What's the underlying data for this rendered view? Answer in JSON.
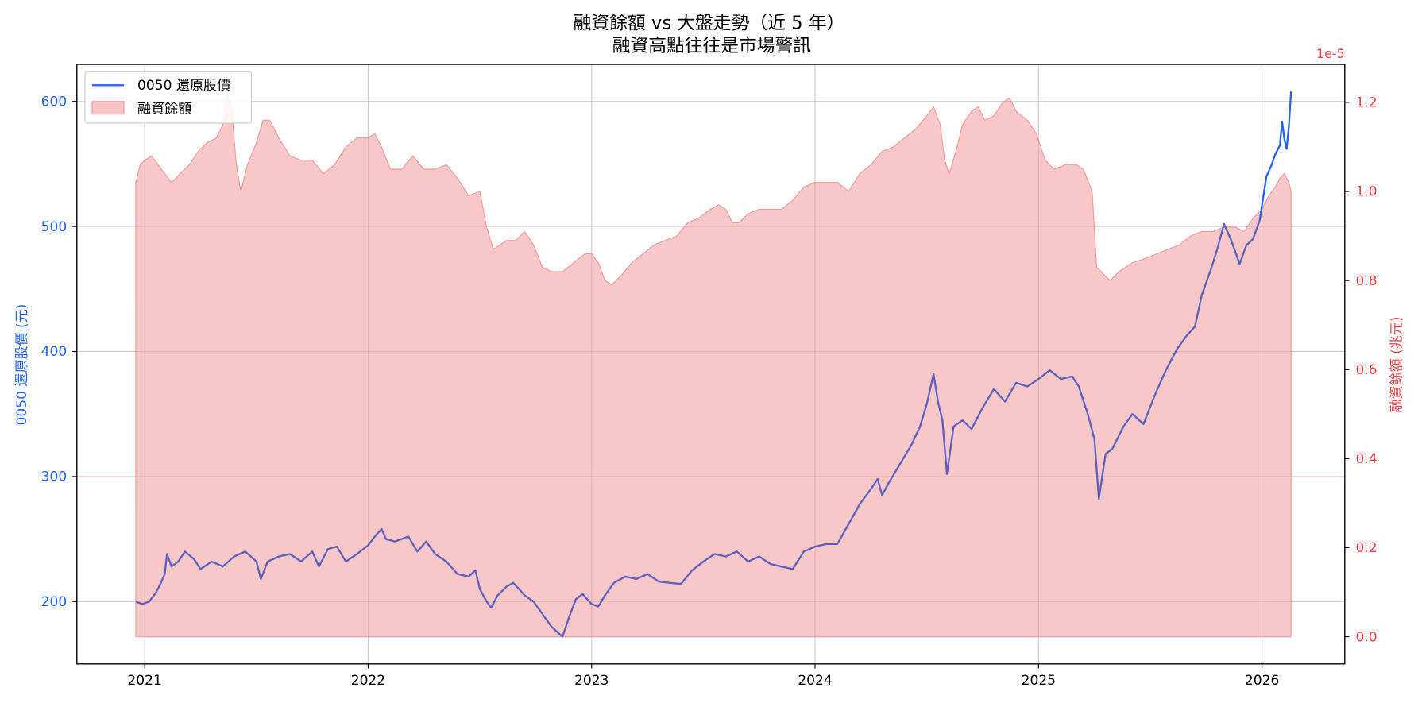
{
  "chart_data": {
    "type": "line",
    "title": "融資餘額 vs 大盤走勢（近 5 年）",
    "subtitle": "融資高點往往是市場警訊",
    "xlabel": "",
    "ylabel_left": "0050 還原股價 (元)",
    "ylabel_right": "融資餘額 (兆元)",
    "right_axis_offset_text": "1e-5",
    "x_ticks": [
      "2021",
      "2022",
      "2023",
      "2024",
      "2025",
      "2026"
    ],
    "y_left_ticks": [
      "200",
      "300",
      "400",
      "500",
      "600"
    ],
    "y_right_ticks": [
      "0.0",
      "0.2",
      "0.4",
      "0.6",
      "0.8",
      "1.0",
      "1.2"
    ],
    "ylim_left": [
      150,
      630
    ],
    "ylim_right": [
      -0.07,
      1.29
    ],
    "xlim": [
      2020.7,
      2026.37
    ],
    "grid": true,
    "legend_position": "upper left",
    "legend": [
      "0050 還原股價",
      "融資餘額"
    ],
    "colors": {
      "price_line": "#2563eb",
      "price_line_under_fill": "#5b5fc0",
      "margin_fill": "#f8c4c4",
      "margin_edge": "#f28b8b",
      "left_axis": "#2563eb",
      "right_axis": "#e64545"
    },
    "series": [
      {
        "name": "0050 還原股價",
        "type": "line",
        "axis": "left",
        "points": [
          [
            2020.96,
            200
          ],
          [
            2020.99,
            198
          ],
          [
            2021.02,
            200
          ],
          [
            2021.05,
            207
          ],
          [
            2021.07,
            214
          ],
          [
            2021.09,
            222
          ],
          [
            2021.1,
            238
          ],
          [
            2021.12,
            228
          ],
          [
            2021.15,
            232
          ],
          [
            2021.18,
            240
          ],
          [
            2021.22,
            234
          ],
          [
            2021.25,
            226
          ],
          [
            2021.3,
            232
          ],
          [
            2021.35,
            228
          ],
          [
            2021.4,
            236
          ],
          [
            2021.45,
            240
          ],
          [
            2021.5,
            232
          ],
          [
            2021.52,
            218
          ],
          [
            2021.55,
            232
          ],
          [
            2021.6,
            236
          ],
          [
            2021.65,
            238
          ],
          [
            2021.7,
            232
          ],
          [
            2021.75,
            240
          ],
          [
            2021.78,
            228
          ],
          [
            2021.82,
            242
          ],
          [
            2021.86,
            244
          ],
          [
            2021.9,
            232
          ],
          [
            2021.95,
            238
          ],
          [
            2022.0,
            245
          ],
          [
            2022.03,
            252
          ],
          [
            2022.06,
            258
          ],
          [
            2022.08,
            250
          ],
          [
            2022.12,
            248
          ],
          [
            2022.18,
            252
          ],
          [
            2022.22,
            240
          ],
          [
            2022.26,
            248
          ],
          [
            2022.3,
            238
          ],
          [
            2022.35,
            232
          ],
          [
            2022.4,
            222
          ],
          [
            2022.45,
            220
          ],
          [
            2022.48,
            225
          ],
          [
            2022.5,
            210
          ],
          [
            2022.53,
            200
          ],
          [
            2022.55,
            195
          ],
          [
            2022.58,
            205
          ],
          [
            2022.62,
            212
          ],
          [
            2022.65,
            215
          ],
          [
            2022.7,
            205
          ],
          [
            2022.74,
            200
          ],
          [
            2022.78,
            190
          ],
          [
            2022.82,
            180
          ],
          [
            2022.85,
            175
          ],
          [
            2022.87,
            172
          ],
          [
            2022.9,
            188
          ],
          [
            2022.93,
            202
          ],
          [
            2022.96,
            206
          ],
          [
            2023.0,
            198
          ],
          [
            2023.03,
            196
          ],
          [
            2023.06,
            205
          ],
          [
            2023.1,
            215
          ],
          [
            2023.15,
            220
          ],
          [
            2023.2,
            218
          ],
          [
            2023.25,
            222
          ],
          [
            2023.3,
            216
          ],
          [
            2023.35,
            215
          ],
          [
            2023.4,
            214
          ],
          [
            2023.45,
            225
          ],
          [
            2023.5,
            232
          ],
          [
            2023.55,
            238
          ],
          [
            2023.6,
            236
          ],
          [
            2023.65,
            240
          ],
          [
            2023.7,
            232
          ],
          [
            2023.75,
            236
          ],
          [
            2023.8,
            230
          ],
          [
            2023.85,
            228
          ],
          [
            2023.9,
            226
          ],
          [
            2023.95,
            240
          ],
          [
            2024.0,
            244
          ],
          [
            2024.05,
            246
          ],
          [
            2024.1,
            246
          ],
          [
            2024.15,
            262
          ],
          [
            2024.2,
            278
          ],
          [
            2024.25,
            290
          ],
          [
            2024.28,
            298
          ],
          [
            2024.3,
            285
          ],
          [
            2024.33,
            295
          ],
          [
            2024.38,
            310
          ],
          [
            2024.43,
            325
          ],
          [
            2024.47,
            340
          ],
          [
            2024.5,
            358
          ],
          [
            2024.53,
            382
          ],
          [
            2024.55,
            360
          ],
          [
            2024.57,
            345
          ],
          [
            2024.59,
            302
          ],
          [
            2024.62,
            340
          ],
          [
            2024.66,
            345
          ],
          [
            2024.7,
            338
          ],
          [
            2024.75,
            355
          ],
          [
            2024.8,
            370
          ],
          [
            2024.85,
            360
          ],
          [
            2024.9,
            375
          ],
          [
            2024.95,
            372
          ],
          [
            2025.0,
            378
          ],
          [
            2025.05,
            385
          ],
          [
            2025.1,
            378
          ],
          [
            2025.15,
            380
          ],
          [
            2025.18,
            372
          ],
          [
            2025.22,
            350
          ],
          [
            2025.25,
            330
          ],
          [
            2025.27,
            282
          ],
          [
            2025.3,
            318
          ],
          [
            2025.33,
            322
          ],
          [
            2025.38,
            340
          ],
          [
            2025.42,
            350
          ],
          [
            2025.47,
            342
          ],
          [
            2025.52,
            365
          ],
          [
            2025.57,
            385
          ],
          [
            2025.62,
            402
          ],
          [
            2025.66,
            412
          ],
          [
            2025.7,
            420
          ],
          [
            2025.73,
            445
          ],
          [
            2025.77,
            465
          ],
          [
            2025.8,
            482
          ],
          [
            2025.83,
            502
          ],
          [
            2025.86,
            490
          ],
          [
            2025.9,
            470
          ],
          [
            2025.93,
            485
          ],
          [
            2025.96,
            490
          ],
          [
            2025.99,
            505
          ],
          [
            2026.02,
            540
          ],
          [
            2026.04,
            548
          ],
          [
            2026.06,
            558
          ],
          [
            2026.08,
            565
          ],
          [
            2026.09,
            584
          ],
          [
            2026.1,
            570
          ],
          [
            2026.11,
            562
          ],
          [
            2026.12,
            580
          ],
          [
            2026.13,
            608
          ]
        ]
      },
      {
        "name": "融資餘額",
        "type": "area",
        "axis": "right",
        "unit": "1e-5 兆元",
        "points": [
          [
            2020.96,
            1.02
          ],
          [
            2020.98,
            1.06
          ],
          [
            2021.0,
            1.07
          ],
          [
            2021.03,
            1.08
          ],
          [
            2021.06,
            1.06
          ],
          [
            2021.09,
            1.04
          ],
          [
            2021.12,
            1.02
          ],
          [
            2021.16,
            1.04
          ],
          [
            2021.2,
            1.06
          ],
          [
            2021.24,
            1.09
          ],
          [
            2021.28,
            1.11
          ],
          [
            2021.32,
            1.12
          ],
          [
            2021.35,
            1.15
          ],
          [
            2021.37,
            1.22
          ],
          [
            2021.39,
            1.18
          ],
          [
            2021.41,
            1.06
          ],
          [
            2021.43,
            1.0
          ],
          [
            2021.46,
            1.06
          ],
          [
            2021.5,
            1.11
          ],
          [
            2021.53,
            1.16
          ],
          [
            2021.56,
            1.16
          ],
          [
            2021.6,
            1.12
          ],
          [
            2021.65,
            1.08
          ],
          [
            2021.7,
            1.07
          ],
          [
            2021.75,
            1.07
          ],
          [
            2021.8,
            1.04
          ],
          [
            2021.85,
            1.06
          ],
          [
            2021.9,
            1.1
          ],
          [
            2021.95,
            1.12
          ],
          [
            2022.0,
            1.12
          ],
          [
            2022.03,
            1.13
          ],
          [
            2022.06,
            1.1
          ],
          [
            2022.1,
            1.05
          ],
          [
            2022.15,
            1.05
          ],
          [
            2022.2,
            1.08
          ],
          [
            2022.25,
            1.05
          ],
          [
            2022.3,
            1.05
          ],
          [
            2022.35,
            1.06
          ],
          [
            2022.4,
            1.03
          ],
          [
            2022.45,
            0.99
          ],
          [
            2022.5,
            1.0
          ],
          [
            2022.53,
            0.92
          ],
          [
            2022.56,
            0.87
          ],
          [
            2022.62,
            0.89
          ],
          [
            2022.66,
            0.89
          ],
          [
            2022.7,
            0.91
          ],
          [
            2022.74,
            0.88
          ],
          [
            2022.78,
            0.83
          ],
          [
            2022.82,
            0.82
          ],
          [
            2022.87,
            0.82
          ],
          [
            2022.92,
            0.84
          ],
          [
            2022.97,
            0.86
          ],
          [
            2023.0,
            0.86
          ],
          [
            2023.03,
            0.84
          ],
          [
            2023.06,
            0.8
          ],
          [
            2023.09,
            0.79
          ],
          [
            2023.13,
            0.81
          ],
          [
            2023.18,
            0.84
          ],
          [
            2023.23,
            0.86
          ],
          [
            2023.28,
            0.88
          ],
          [
            2023.33,
            0.89
          ],
          [
            2023.38,
            0.9
          ],
          [
            2023.43,
            0.93
          ],
          [
            2023.48,
            0.94
          ],
          [
            2023.53,
            0.96
          ],
          [
            2023.57,
            0.97
          ],
          [
            2023.6,
            0.96
          ],
          [
            2023.63,
            0.93
          ],
          [
            2023.66,
            0.93
          ],
          [
            2023.7,
            0.95
          ],
          [
            2023.75,
            0.96
          ],
          [
            2023.8,
            0.96
          ],
          [
            2023.85,
            0.96
          ],
          [
            2023.9,
            0.98
          ],
          [
            2023.95,
            1.01
          ],
          [
            2024.0,
            1.02
          ],
          [
            2024.05,
            1.02
          ],
          [
            2024.1,
            1.02
          ],
          [
            2024.15,
            1.0
          ],
          [
            2024.2,
            1.04
          ],
          [
            2024.25,
            1.06
          ],
          [
            2024.3,
            1.09
          ],
          [
            2024.35,
            1.1
          ],
          [
            2024.4,
            1.12
          ],
          [
            2024.45,
            1.14
          ],
          [
            2024.5,
            1.17
          ],
          [
            2024.53,
            1.19
          ],
          [
            2024.56,
            1.15
          ],
          [
            2024.58,
            1.07
          ],
          [
            2024.6,
            1.04
          ],
          [
            2024.63,
            1.09
          ],
          [
            2024.66,
            1.15
          ],
          [
            2024.7,
            1.18
          ],
          [
            2024.73,
            1.19
          ],
          [
            2024.76,
            1.16
          ],
          [
            2024.8,
            1.17
          ],
          [
            2024.84,
            1.2
          ],
          [
            2024.87,
            1.21
          ],
          [
            2024.9,
            1.18
          ],
          [
            2024.95,
            1.16
          ],
          [
            2024.99,
            1.13
          ],
          [
            2025.03,
            1.07
          ],
          [
            2025.07,
            1.05
          ],
          [
            2025.12,
            1.06
          ],
          [
            2025.17,
            1.06
          ],
          [
            2025.2,
            1.05
          ],
          [
            2025.24,
            1.0
          ],
          [
            2025.26,
            0.83
          ],
          [
            2025.28,
            0.82
          ],
          [
            2025.32,
            0.8
          ],
          [
            2025.36,
            0.82
          ],
          [
            2025.42,
            0.84
          ],
          [
            2025.48,
            0.85
          ],
          [
            2025.53,
            0.86
          ],
          [
            2025.58,
            0.87
          ],
          [
            2025.63,
            0.88
          ],
          [
            2025.68,
            0.9
          ],
          [
            2025.73,
            0.91
          ],
          [
            2025.78,
            0.91
          ],
          [
            2025.83,
            0.92
          ],
          [
            2025.88,
            0.92
          ],
          [
            2025.92,
            0.91
          ],
          [
            2025.96,
            0.94
          ],
          [
            2026.0,
            0.96
          ],
          [
            2026.03,
            0.99
          ],
          [
            2026.06,
            1.01
          ],
          [
            2026.08,
            1.03
          ],
          [
            2026.1,
            1.04
          ],
          [
            2026.12,
            1.02
          ],
          [
            2026.13,
            1.0
          ]
        ]
      }
    ]
  }
}
